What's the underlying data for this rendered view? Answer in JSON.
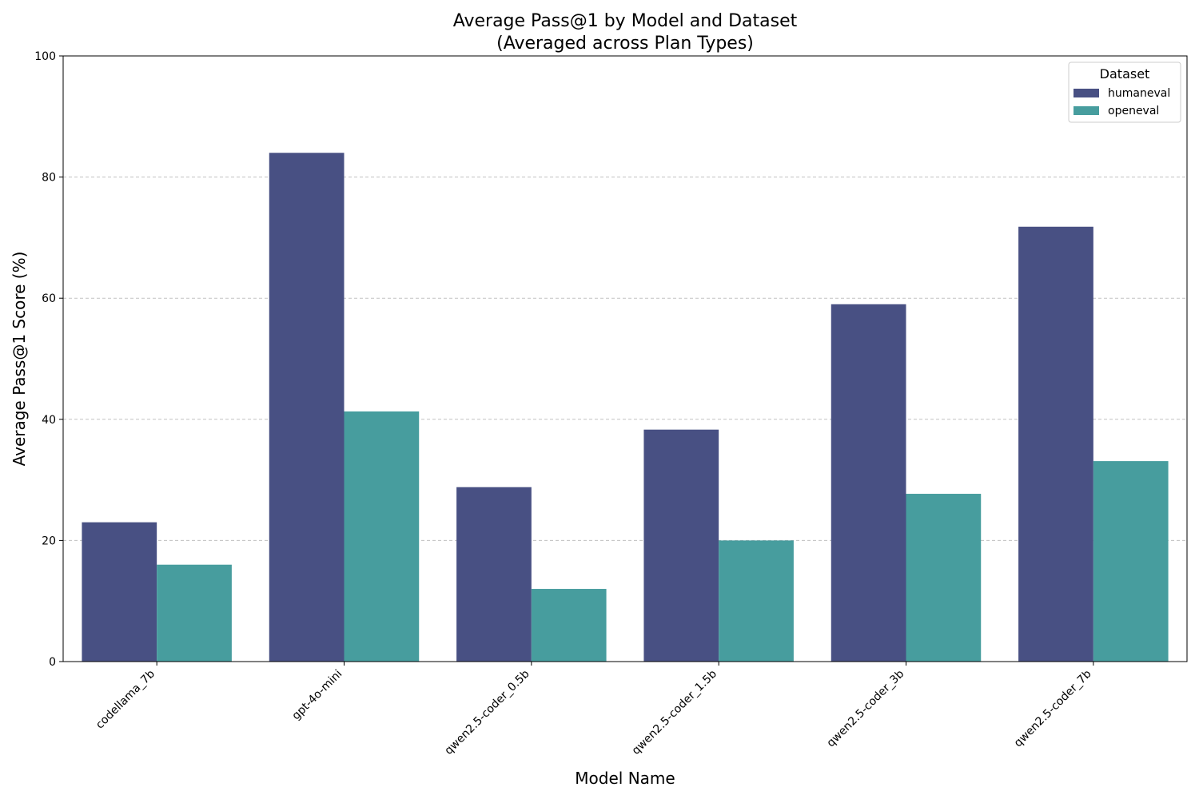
{
  "chart_data": {
    "type": "bar",
    "title": "Average Pass@1 by Model and Dataset",
    "subtitle": "(Averaged across Plan Types)",
    "xlabel": "Model Name",
    "ylabel": "Average Pass@1 Score (%)",
    "ylim": [
      0,
      100
    ],
    "yticks": [
      0,
      20,
      40,
      60,
      80,
      100
    ],
    "grid": "y-dashed",
    "legend_title": "Dataset",
    "legend_placement": "top-right",
    "categories": [
      "codellama_7b",
      "gpt-4o-mini",
      "qwen2.5-coder_0.5b",
      "qwen2.5-coder_1.5b",
      "qwen2.5-coder_3b",
      "qwen2.5-coder_7b"
    ],
    "series": [
      {
        "name": "humaneval",
        "color": "#485083",
        "values": [
          23.0,
          84.0,
          28.8,
          38.3,
          59.0,
          71.8
        ]
      },
      {
        "name": "openeval",
        "color": "#479d9e",
        "values": [
          16.0,
          41.3,
          12.0,
          20.0,
          27.7,
          33.1
        ]
      }
    ]
  }
}
